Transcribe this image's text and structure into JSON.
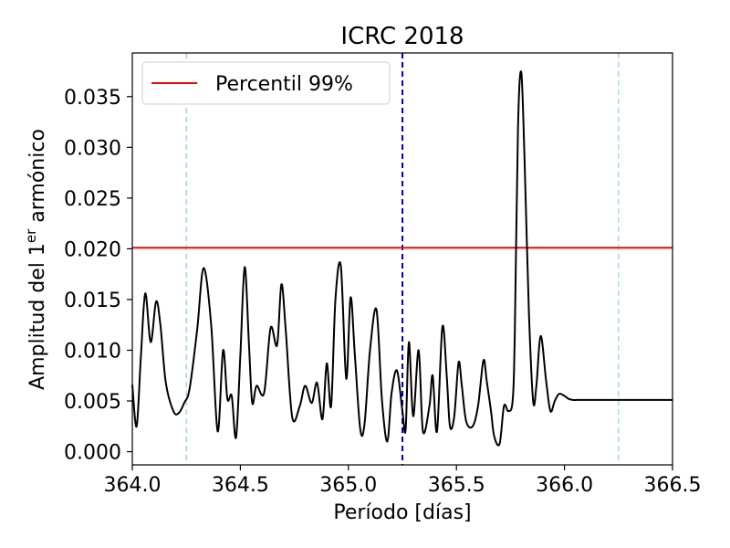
{
  "chart_data": {
    "type": "line",
    "title": "ICRC 2018",
    "xlabel": "Período [días]",
    "ylabel_prefix": "Amplitud del 1",
    "ylabel_sup": "er",
    "ylabel_suffix": " armónico",
    "xlim": [
      364.0,
      366.5
    ],
    "ylim": [
      -0.0013,
      0.0393
    ],
    "x_ticks": [
      364.0,
      364.5,
      365.0,
      365.5,
      366.0,
      366.5
    ],
    "x_tick_labels": [
      "364.0",
      "364.5",
      "365.0",
      "365.5",
      "366.0",
      "366.5"
    ],
    "y_ticks": [
      0.0,
      0.005,
      0.01,
      0.015,
      0.02,
      0.025,
      0.03,
      0.035
    ],
    "y_tick_labels": [
      "0.000",
      "0.005",
      "0.010",
      "0.015",
      "0.020",
      "0.025",
      "0.030",
      "0.035"
    ],
    "grid": false,
    "legend_position": "top-left",
    "legend": [
      {
        "label": "Percentil 99%",
        "color": "#ff0000"
      }
    ],
    "threshold": {
      "name": "Percentil 99%",
      "y": 0.0201,
      "color": "#ff0000"
    },
    "vlines": [
      {
        "x": 364.25,
        "color": "#add8e6",
        "style": "dashed"
      },
      {
        "x": 365.25,
        "color": "#0000cc",
        "style": "dashed"
      },
      {
        "x": 366.25,
        "color": "#add8e6",
        "style": "dashed"
      }
    ],
    "series": [
      {
        "color": "#000000",
        "x": [
          364.0,
          364.02,
          364.04,
          364.06,
          364.085,
          364.11,
          364.13,
          364.155,
          364.19,
          364.215,
          364.24,
          364.265,
          364.3,
          364.33,
          364.365,
          364.395,
          364.42,
          364.44,
          364.46,
          364.48,
          364.5,
          364.52,
          364.54,
          364.555,
          364.575,
          364.61,
          364.64,
          364.67,
          364.69,
          364.71,
          364.74,
          364.775,
          364.8,
          364.83,
          364.855,
          364.88,
          364.9,
          364.92,
          364.94,
          364.965,
          364.99,
          365.01,
          365.03,
          365.055,
          365.075,
          365.1,
          365.13,
          365.155,
          365.18,
          365.2,
          365.225,
          365.25,
          365.265,
          365.28,
          365.3,
          365.325,
          365.345,
          365.375,
          365.39,
          365.41,
          365.435,
          365.455,
          365.47,
          365.49,
          365.51,
          365.525,
          365.545,
          365.575,
          365.6,
          365.625,
          365.64,
          365.66,
          365.675,
          365.7,
          365.72,
          365.74,
          365.76,
          365.77,
          365.785,
          365.8,
          365.815,
          365.835,
          365.855,
          365.87,
          365.89,
          365.915,
          365.935,
          365.955,
          365.975,
          366.0,
          366.02,
          366.04,
          366.055,
          366.075,
          366.09,
          366.1,
          366.115,
          366.135,
          366.15,
          366.165,
          366.185,
          366.205,
          366.22,
          366.245,
          366.265,
          366.285,
          366.3,
          366.315,
          366.335,
          366.35,
          366.365,
          366.385,
          366.4,
          366.42,
          366.44,
          366.46,
          366.48,
          366.5
        ],
        "y": [
          0.0066,
          0.0025,
          0.0095,
          0.0156,
          0.0108,
          0.0148,
          0.0125,
          0.0068,
          0.004,
          0.0038,
          0.0048,
          0.0062,
          0.012,
          0.0181,
          0.0125,
          0.002,
          0.01,
          0.0052,
          0.0055,
          0.0014,
          0.0095,
          0.0182,
          0.0105,
          0.0048,
          0.0065,
          0.0058,
          0.0122,
          0.0105,
          0.0165,
          0.012,
          0.0034,
          0.0045,
          0.0065,
          0.0048,
          0.0068,
          0.0032,
          0.0087,
          0.0045,
          0.015,
          0.0183,
          0.0072,
          0.0152,
          0.0095,
          0.0022,
          0.0028,
          0.01,
          0.014,
          0.0052,
          0.001,
          0.0058,
          0.008,
          0.004,
          0.0022,
          0.0108,
          0.0035,
          0.01,
          0.002,
          0.0045,
          0.0075,
          0.002,
          0.0123,
          0.0075,
          0.0025,
          0.0035,
          0.0088,
          0.0065,
          0.003,
          0.0025,
          0.0045,
          0.009,
          0.007,
          0.004,
          0.0015,
          0.0008,
          0.0045,
          0.004,
          0.005,
          0.0115,
          0.032,
          0.0374,
          0.029,
          0.014,
          0.005,
          0.0065,
          0.0114,
          0.007,
          0.004,
          0.005,
          0.0057,
          0.0055,
          0.0052,
          0.0051,
          0.0051,
          0.0051,
          0.0051,
          0.0051,
          0.0051,
          0.0051,
          0.0051,
          0.0051,
          0.0051,
          0.0051,
          0.0051,
          0.0051,
          0.0051,
          0.0051,
          0.0051,
          0.0051,
          0.0051,
          0.0051,
          0.0051,
          0.0051,
          0.0051,
          0.0051,
          0.0051,
          0.0051,
          0.0051,
          0.0051
        ]
      }
    ]
  }
}
